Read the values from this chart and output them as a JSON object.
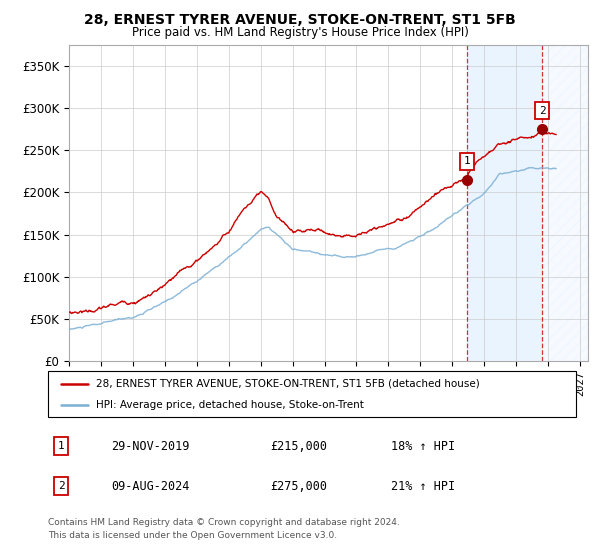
{
  "title": "28, ERNEST TYRER AVENUE, STOKE-ON-TRENT, ST1 5FB",
  "subtitle": "Price paid vs. HM Land Registry's House Price Index (HPI)",
  "ylabel_ticks": [
    "£0",
    "£50K",
    "£100K",
    "£150K",
    "£200K",
    "£250K",
    "£300K",
    "£350K"
  ],
  "ytick_values": [
    0,
    50000,
    100000,
    150000,
    200000,
    250000,
    300000,
    350000
  ],
  "ylim": [
    0,
    375000
  ],
  "xlim_start": 1995.0,
  "xlim_end": 2027.5,
  "background_color": "#ffffff",
  "grid_color": "#cccccc",
  "hpi_line_color": "#7bafd4",
  "price_line_color": "#cc0000",
  "sale1_date": 2019.92,
  "sale1_price": 215000,
  "sale2_date": 2024.62,
  "sale2_price": 275000,
  "legend_price_label": "28, ERNEST TYRER AVENUE, STOKE-ON-TRENT, ST1 5FB (detached house)",
  "legend_hpi_label": "HPI: Average price, detached house, Stoke-on-Trent",
  "table_row1": [
    "1",
    "29-NOV-2019",
    "£215,000",
    "18% ↑ HPI"
  ],
  "table_row2": [
    "2",
    "09-AUG-2024",
    "£275,000",
    "21% ↑ HPI"
  ],
  "footer": "Contains HM Land Registry data © Crown copyright and database right 2024.\nThis data is licensed under the Open Government Licence v3.0.",
  "shade1_start": 2019.92,
  "shade1_end": 2024.62,
  "shade2_start": 2024.62,
  "shade2_end": 2027.5
}
